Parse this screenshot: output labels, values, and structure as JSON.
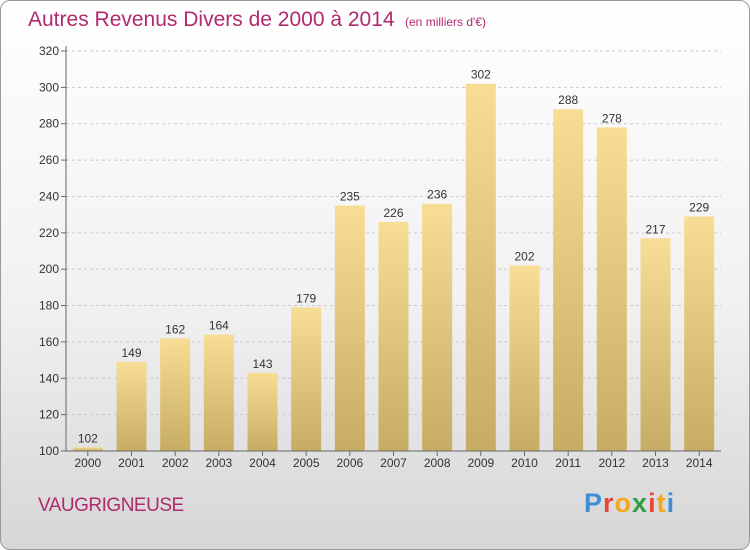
{
  "header": {
    "title": "Autres Revenus Divers de 2000 à 2014",
    "unit": "(en milliers d'€)"
  },
  "footer": {
    "commune": "VAUGRIGNEUSE",
    "logo": "Proxiti"
  },
  "colors": {
    "title": "#b22a6e",
    "bar_top": "#f8dd95",
    "bar_bottom": "#c7ac63",
    "logo_letters": [
      "#3d8fd8",
      "#e8463b",
      "#f2a81a",
      "#2f9e44",
      "#e8463b",
      "#f2a81a",
      "#3d8fd8"
    ]
  },
  "chart_data": {
    "type": "bar",
    "title": "Autres Revenus Divers de 2000 à 2014",
    "xlabel": "",
    "ylabel": "",
    "categories": [
      "2000",
      "2001",
      "2002",
      "2003",
      "2004",
      "2005",
      "2006",
      "2007",
      "2008",
      "2009",
      "2010",
      "2011",
      "2012",
      "2013",
      "2014"
    ],
    "values": [
      102,
      149,
      162,
      164,
      143,
      179,
      235,
      226,
      236,
      302,
      202,
      288,
      278,
      217,
      229
    ],
    "ylim": [
      100,
      320
    ],
    "yticks": [
      100,
      120,
      140,
      160,
      180,
      200,
      220,
      240,
      260,
      280,
      300,
      320
    ],
    "grid": "horizontal dashed",
    "legend": "none"
  }
}
